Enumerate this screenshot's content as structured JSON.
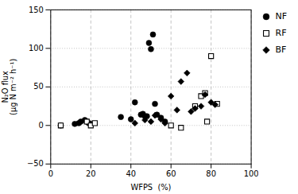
{
  "chart_data": {
    "type": "scatter",
    "xlabel": "WFPS  (%)",
    "ylabel": "N₂O flux\n(μg N m⁻² h⁻¹)",
    "xlim": [
      0,
      100
    ],
    "ylim": [
      -50,
      150
    ],
    "xticks": [
      0,
      20,
      40,
      60,
      80,
      100
    ],
    "yticks": [
      -50,
      0,
      50,
      100,
      150
    ],
    "grid": true,
    "legend": "right",
    "series": [
      {
        "name": "NF",
        "color": "#000000",
        "marker": "circle",
        "x": [
          5,
          12,
          14,
          15,
          17,
          18,
          19,
          20,
          35,
          40,
          42,
          45,
          46,
          47,
          48,
          49,
          50,
          51,
          52,
          53,
          55,
          57
        ],
        "values": [
          0,
          2,
          3,
          5,
          7,
          5,
          3,
          2,
          11,
          8,
          30,
          14,
          15,
          12,
          12,
          107,
          99,
          118,
          28,
          14,
          10,
          5
        ]
      },
      {
        "name": "RF",
        "color": "#000000",
        "marker": "square-open",
        "x": [
          5,
          18,
          20,
          22,
          60,
          65,
          72,
          75,
          77,
          78,
          80,
          83
        ],
        "values": [
          0,
          5,
          0,
          3,
          0,
          -3,
          25,
          38,
          42,
          5,
          90,
          28
        ]
      },
      {
        "name": "BF",
        "color": "#000000",
        "marker": "diamond",
        "x": [
          42,
          47,
          50,
          52,
          55,
          57,
          60,
          63,
          65,
          68,
          70,
          72,
          75,
          77,
          80,
          82
        ],
        "values": [
          3,
          7,
          5,
          13,
          8,
          3,
          38,
          20,
          57,
          68,
          18,
          22,
          25,
          40,
          30,
          27
        ]
      }
    ]
  }
}
